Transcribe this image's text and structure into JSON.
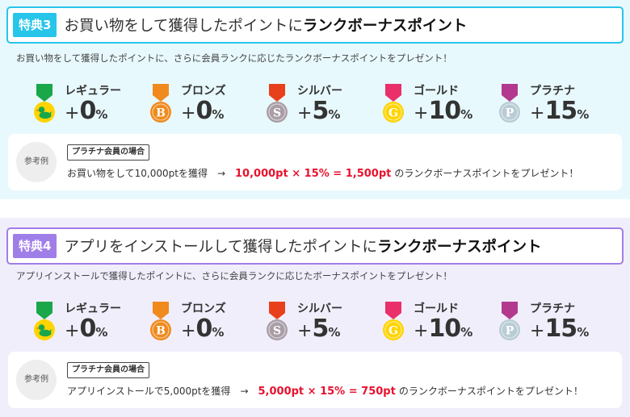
{
  "sections": [
    {
      "badge": "特典3",
      "title_prefix": "お買い物をして獲得したポイントに",
      "title_bold": "ランクボーナスポイント",
      "description": "お買い物をして獲得したポイントに、さらに会員ランクに応じたランクボーナスポイントをプレゼント！",
      "ranks": [
        {
          "name": "レギュラー",
          "plus": "+",
          "value": "0",
          "unit": "%"
        },
        {
          "name": "ブロンズ",
          "plus": "+",
          "value": "0",
          "unit": "%"
        },
        {
          "name": "シルバー",
          "plus": "+",
          "value": "5",
          "unit": "%"
        },
        {
          "name": "ゴールド",
          "plus": "+",
          "value": "10",
          "unit": "%"
        },
        {
          "name": "プラチナ",
          "plus": "+",
          "value": "15",
          "unit": "%"
        }
      ],
      "example": {
        "circle_label": "参考例",
        "case_label": "プラチナ会員の場合",
        "base_text": "お買い物をして10,000ptを獲得",
        "arrow": "→",
        "calculation": "10,000pt × 15% = 1,500pt",
        "result_text": "のランクボーナスポイントをプレゼント！"
      }
    },
    {
      "badge": "特典4",
      "title_prefix": "アプリをインストールして獲得したポイントに",
      "title_bold": "ランクボーナスポイント",
      "description": "アプリインストールで獲得したポイントに、さらに会員ランクに応じたボーナスポイントをプレゼント！",
      "ranks": [
        {
          "name": "レギュラー",
          "plus": "+",
          "value": "0",
          "unit": "%"
        },
        {
          "name": "ブロンズ",
          "plus": "+",
          "value": "0",
          "unit": "%"
        },
        {
          "name": "シルバー",
          "plus": "+",
          "value": "5",
          "unit": "%"
        },
        {
          "name": "ゴールド",
          "plus": "+",
          "value": "10",
          "unit": "%"
        },
        {
          "name": "プラチナ",
          "plus": "+",
          "value": "15",
          "unit": "%"
        }
      ],
      "example": {
        "circle_label": "参考例",
        "case_label": "プラチナ会員の場合",
        "base_text": "アプリインストールで5,000ptを獲得",
        "arrow": "→",
        "calculation": "5,000pt × 15% = 750pt",
        "result_text": "のランクボーナスポイントをプレゼント！"
      }
    }
  ],
  "medals": [
    {
      "icon": "duck-medal-icon",
      "ribbon": "#1aa74a",
      "disc": "#ffd400",
      "letter": "",
      "letter_color": "#1aa74a"
    },
    {
      "icon": "bronze-medal-icon",
      "ribbon": "#f08a1c",
      "disc": "#f08a1c",
      "letter": "B",
      "letter_color": "#ffffff"
    },
    {
      "icon": "silver-medal-icon",
      "ribbon": "#e8401c",
      "disc": "#a99ea6",
      "letter": "S",
      "letter_color": "#ffffff"
    },
    {
      "icon": "gold-medal-icon",
      "ribbon": "#e9306a",
      "disc": "#ffd400",
      "letter": "G",
      "letter_color": "#ffffff"
    },
    {
      "icon": "platinum-medal-icon",
      "ribbon": "#b3398f",
      "disc": "#b8ccd4",
      "letter": "P",
      "letter_color": "#ffffff"
    }
  ]
}
